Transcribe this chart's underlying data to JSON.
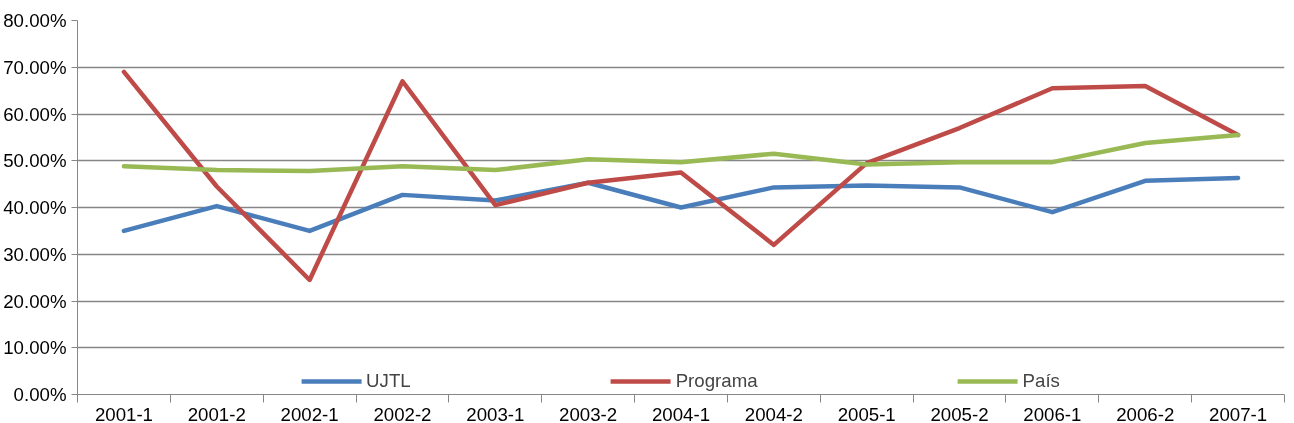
{
  "chart_data": {
    "type": "line",
    "categories": [
      "2001-1",
      "2001-2",
      "2002-1",
      "2002-2",
      "2003-1",
      "2003-2",
      "2004-1",
      "2004-2",
      "2005-1",
      "2005-2",
      "2006-1",
      "2006-2",
      "2007-1"
    ],
    "series": [
      {
        "name": "UJTL",
        "color": "#4a7ebb",
        "values": [
          35,
          40.3,
          35,
          42.7,
          41.5,
          45.3,
          40,
          44.3,
          44.7,
          44.3,
          39,
          45.7,
          46.3
        ]
      },
      {
        "name": "Programa",
        "color": "#be4b48",
        "values": [
          69,
          44.5,
          24.5,
          67,
          40.5,
          45.3,
          47.5,
          32,
          49.5,
          57,
          65.5,
          66,
          55.5
        ]
      },
      {
        "name": "País",
        "color": "#98b954",
        "values": [
          48.8,
          48,
          47.8,
          48.8,
          48,
          50.3,
          49.7,
          51.5,
          49.2,
          49.7,
          49.7,
          53.8,
          55.5
        ]
      }
    ],
    "ylim": [
      0,
      80
    ],
    "yticks": [
      {
        "value": 0,
        "label": "0.00%"
      },
      {
        "value": 10,
        "label": "10.00%"
      },
      {
        "value": 20,
        "label": "20.00%"
      },
      {
        "value": 30,
        "label": "30.00%"
      },
      {
        "value": 40,
        "label": "40.00%"
      },
      {
        "value": 50,
        "label": "50.00%"
      },
      {
        "value": 60,
        "label": "60.00%"
      },
      {
        "value": 70,
        "label": "70.00%"
      },
      {
        "value": 80,
        "label": "80.00%"
      }
    ],
    "grid": "y",
    "legend": "bottom",
    "line_style": "solid",
    "marker": "none"
  }
}
